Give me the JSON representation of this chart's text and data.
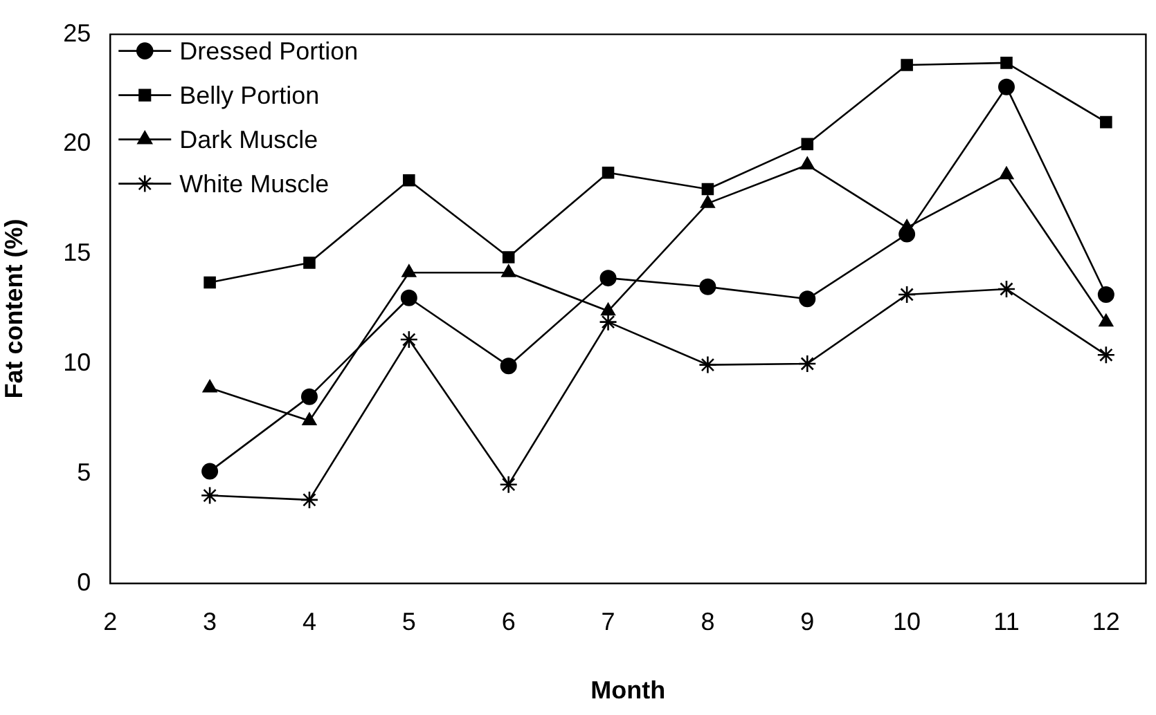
{
  "chart_data": {
    "type": "line",
    "xlabel": "Month",
    "ylabel": "Fat content (%)",
    "x": [
      3,
      4,
      5,
      6,
      7,
      8,
      9,
      10,
      11,
      12
    ],
    "xlim": [
      2,
      12.4
    ],
    "xticks": [
      2,
      3,
      4,
      5,
      6,
      7,
      8,
      9,
      10,
      11,
      12
    ],
    "ylim": [
      0,
      25
    ],
    "yticks": [
      0,
      5,
      10,
      15,
      20,
      25
    ],
    "grid": false,
    "legend": "top left",
    "line_style": "solid",
    "series": [
      {
        "name": "Dressed Portion",
        "color": "#000000",
        "marker": "circle",
        "values": [
          5.1,
          8.5,
          13.0,
          9.9,
          13.9,
          13.5,
          12.95,
          15.9,
          22.6,
          13.15
        ]
      },
      {
        "name": "Belly Portion",
        "color": "#000000",
        "marker": "square",
        "values": [
          13.7,
          14.6,
          18.35,
          14.85,
          18.7,
          17.95,
          20.0,
          23.6,
          23.7,
          21.0
        ]
      },
      {
        "name": "Dark Muscle",
        "color": "#000000",
        "marker": "triangle",
        "values": [
          8.9,
          7.4,
          14.15,
          14.15,
          12.4,
          17.3,
          19.05,
          16.2,
          18.6,
          11.9
        ]
      },
      {
        "name": "White Muscle",
        "color": "#000000",
        "marker": "cross",
        "values": [
          4.0,
          3.8,
          11.1,
          4.5,
          11.9,
          9.95,
          10.0,
          13.15,
          13.4,
          10.4
        ]
      }
    ]
  }
}
